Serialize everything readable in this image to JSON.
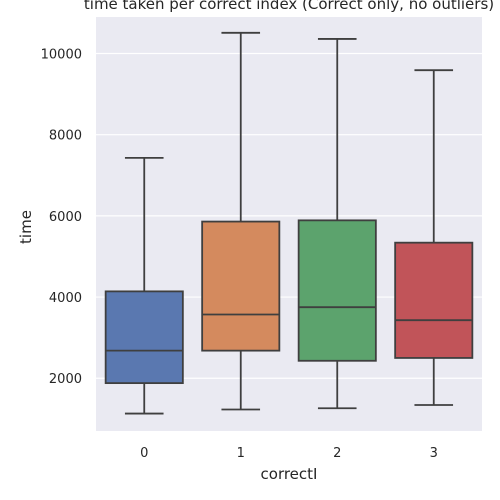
{
  "chart_data": {
    "type": "box",
    "title": "time taken per correct index (Correct only, no outliers)",
    "xlabel": "correctI",
    "ylabel": "time",
    "categories": [
      "0",
      "1",
      "2",
      "3"
    ],
    "ylim": [
      700,
      10900
    ],
    "yticks": [
      2000,
      4000,
      6000,
      8000,
      10000
    ],
    "grid": true,
    "background": "#eaeaf2",
    "grid_color": "#ffffff",
    "line_color": "#3f3f3f",
    "boxes": [
      {
        "category": "0",
        "min": 1130,
        "q1": 1880,
        "median": 2680,
        "q3": 4140,
        "max": 7430,
        "color": "#5a78b0"
      },
      {
        "category": "1",
        "min": 1230,
        "q1": 2680,
        "median": 3570,
        "q3": 5860,
        "max": 10510,
        "color": "#d48a5e"
      },
      {
        "category": "2",
        "min": 1260,
        "q1": 2430,
        "median": 3750,
        "q3": 5890,
        "max": 10360,
        "color": "#5ca36d"
      },
      {
        "category": "3",
        "min": 1340,
        "q1": 2500,
        "median": 3430,
        "q3": 5340,
        "max": 9590,
        "color": "#c15459"
      }
    ]
  }
}
